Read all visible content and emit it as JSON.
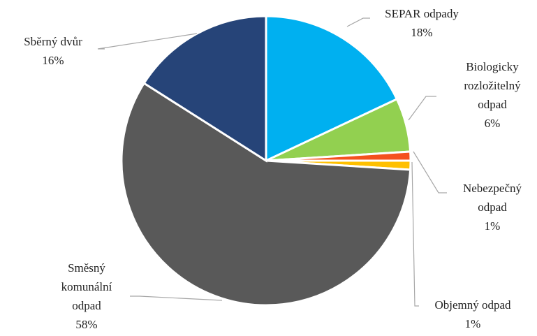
{
  "chart_data": {
    "type": "pie",
    "categories": [
      "SEPAR odpady",
      "Biologicky rozložitelný odpad",
      "Nebezpečný odpad",
      "Objemný odpad",
      "Směsný komunální odpad",
      "Sběrný dvůr"
    ],
    "values": [
      18,
      6,
      1,
      1,
      58,
      16
    ],
    "value_labels": [
      "18%",
      "6%",
      "1%",
      "1%",
      "58%",
      "16%"
    ],
    "colors": [
      "#00b0f0",
      "#92d050",
      "#f4511e",
      "#ffc000",
      "#595959",
      "#264478"
    ]
  }
}
